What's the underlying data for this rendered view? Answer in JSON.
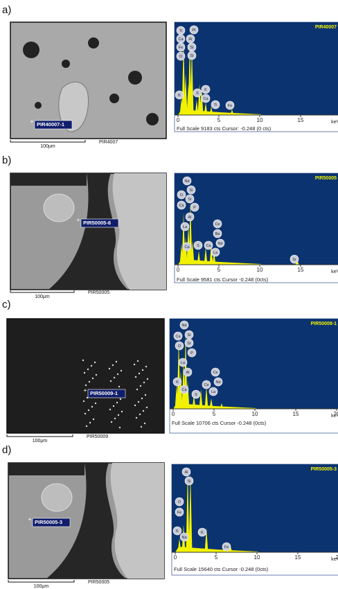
{
  "panels": [
    {
      "label": "a)",
      "spot_label": "PIR40007-1",
      "scale_bar": "100µm",
      "sample": "PIR4007",
      "spectrum_id": "PIR40007",
      "elements": [
        "Ti",
        "Pt",
        "Ca",
        "Al",
        "Fe",
        "Si",
        "O",
        "Si",
        "K",
        "S",
        "K",
        "Ca",
        "Ti",
        "Fe"
      ],
      "x_ticks": [
        "0",
        "5",
        "10",
        "15",
        "20"
      ],
      "unit": "keV",
      "footer": "Full Scale 9183 cts Cursor: -0.248 (0 cts)"
    },
    {
      "label": "b)",
      "spot_label": "PIR50005-6",
      "scale_bar": "100µm",
      "sample": "PIR50005",
      "spectrum_id": "PIR50005",
      "elements": [
        "Nd",
        "Si",
        "O",
        "Sr",
        "Ca",
        "P",
        "Al",
        "La",
        "Ce",
        "Ba",
        "Nd",
        "Ca",
        "S",
        "Ca",
        "La",
        "Sr"
      ],
      "x_ticks": [
        "0",
        "5",
        "10",
        "15",
        "20"
      ],
      "unit": "keV",
      "footer": "Full Scale 9581 cts Cursor -0.248 (0cts)"
    },
    {
      "label": "c)",
      "spot_label": "PIR50009-1",
      "scale_bar": "100µm",
      "sample": "PIR50009",
      "spectrum_id": "PIR50009-1",
      "elements": [
        "Nd",
        "Ca",
        "Si",
        "O",
        "Sr",
        "P",
        "La",
        "Al",
        "Ce",
        "K",
        "Ce",
        "Nd",
        "Ca",
        "S",
        "La"
      ],
      "x_ticks": [
        "0",
        "5",
        "10",
        "15",
        "20"
      ],
      "unit": "keV",
      "footer": "Full Scale 10706 cts Cursor -0.248 (0cts)"
    },
    {
      "label": "d)",
      "spot_label": "PIR50005-3",
      "scale_bar": "100µm",
      "sample": "PIR50005",
      "spectrum_id": "PIR50005-3",
      "elements": [
        "Al",
        "Si",
        "O",
        "Fe",
        "K",
        "Na",
        "K",
        "Fe"
      ],
      "x_ticks": [
        "0",
        "5",
        "10",
        "15",
        "20"
      ],
      "unit": "keV",
      "footer": "Full Scale 15640 cts Cursor -0.248 (0cts)"
    }
  ]
}
